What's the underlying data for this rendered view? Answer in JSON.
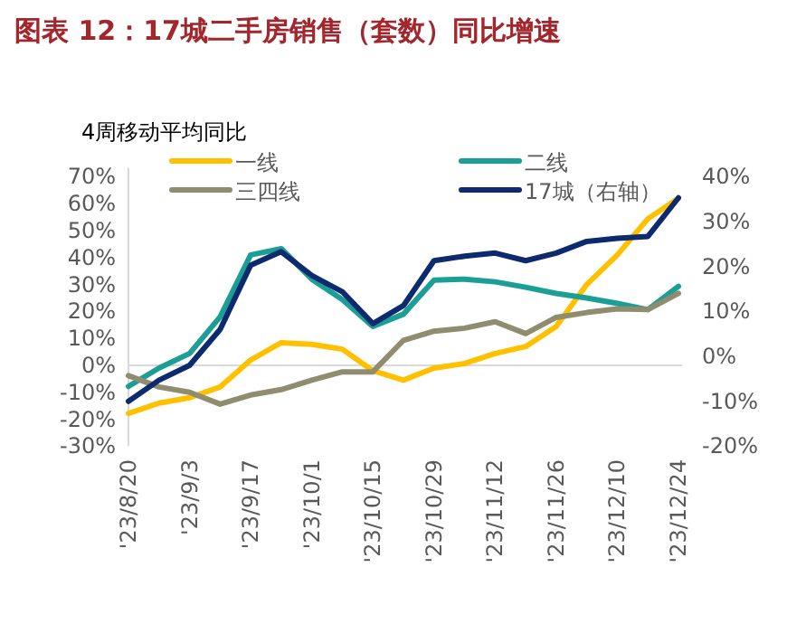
{
  "chart_data": {
    "type": "line",
    "title": "图表 12：17城二手房销售（套数）同比增速",
    "subtitle": "4周移动平均同比",
    "categories": [
      "'23/8/20",
      null,
      "'23/9/3",
      null,
      "'23/9/17",
      null,
      "'23/10/1",
      null,
      "'23/10/15",
      null,
      "'23/10/29",
      null,
      "'23/11/12",
      null,
      "'23/11/26",
      null,
      "'23/12/10",
      null,
      "'23/12/24"
    ],
    "series": [
      {
        "name": "一线",
        "color": "#ffc000",
        "values": [
          -17.8,
          -14,
          -12,
          -8,
          2,
          8.4,
          7.8,
          6,
          -2,
          -5.5,
          -1,
          0.7,
          4.4,
          7,
          14.4,
          30,
          41,
          54.4,
          62
        ]
      },
      {
        "name": "二线",
        "color": "#1a9e96",
        "values": [
          -7.8,
          -1,
          4.4,
          18,
          41,
          43.3,
          32,
          24.4,
          14.4,
          19,
          31.6,
          32,
          31,
          29,
          26.7,
          25,
          23,
          20.7,
          29.3
        ]
      },
      {
        "name": "三四线",
        "color": "#8f8d6e",
        "values": [
          -3.8,
          -8,
          -10,
          -14.4,
          -11,
          -9,
          -5.5,
          -2.4,
          -2.4,
          9.3,
          12.7,
          13.8,
          16.2,
          11.8,
          17.8,
          19.6,
          21,
          20.7,
          26.7
        ]
      },
      {
        "name": "17城（右轴）",
        "color": "#0d2a6e",
        "axis": "y2",
        "values": [
          -10,
          -5.3,
          -2,
          6,
          20.3,
          23.3,
          18,
          14.4,
          7.3,
          11.3,
          21.3,
          22.3,
          23,
          21.3,
          23,
          25.6,
          26.3,
          26.7,
          35.3
        ]
      }
    ],
    "ylim": [
      -30,
      70
    ],
    "yticks": [
      {
        "value": -30,
        "label": "-30%"
      },
      {
        "value": -20,
        "label": "-20%"
      },
      {
        "value": -10,
        "label": "-10%"
      },
      {
        "value": 0,
        "label": "0%"
      },
      {
        "value": 10,
        "label": "10%"
      },
      {
        "value": 20,
        "label": "20%"
      },
      {
        "value": 30,
        "label": "30%"
      },
      {
        "value": 40,
        "label": "40%"
      },
      {
        "value": 50,
        "label": "50%"
      },
      {
        "value": 60,
        "label": "60%"
      },
      {
        "value": 70,
        "label": "70%"
      }
    ],
    "y2lim": [
      -20,
      40
    ],
    "y2ticks": [
      {
        "value": -20,
        "label": "-20%"
      },
      {
        "value": -10,
        "label": "-10%"
      },
      {
        "value": 0,
        "label": "0%"
      },
      {
        "value": 10,
        "label": "10%"
      },
      {
        "value": 20,
        "label": "20%"
      },
      {
        "value": 30,
        "label": "30%"
      },
      {
        "value": 40,
        "label": "40%"
      }
    ],
    "legend": "top",
    "line_style": "solid"
  }
}
